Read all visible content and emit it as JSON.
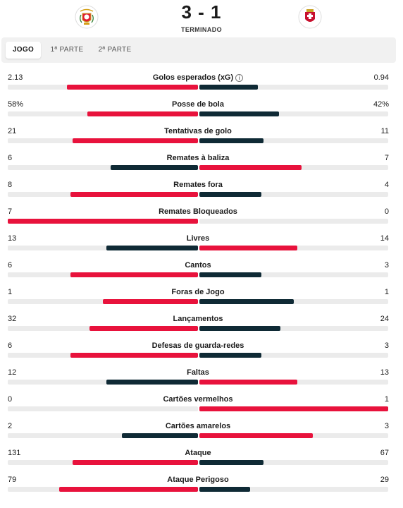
{
  "match": {
    "score": "3 - 1",
    "status": "TERMINADO",
    "home_crest": "benfica-crest-icon",
    "away_crest": "braga-crest-icon"
  },
  "tabs": [
    "JOGO",
    "1ª PARTE",
    "2ª PARTE"
  ],
  "active_tab": 0,
  "colors": {
    "red": "#e8123c",
    "dark": "#0f2a35",
    "track": "#ebebeb"
  },
  "stats": [
    {
      "name": "Golos esperados (xG)",
      "home": "2.13",
      "away": "0.94",
      "info": true,
      "leader": "home",
      "home_share": 0.69,
      "away_share": 0.31
    },
    {
      "name": "Posse de bola",
      "home": "58%",
      "away": "42%",
      "leader": "home",
      "home_share": 0.58,
      "away_share": 0.42
    },
    {
      "name": "Tentativas de golo",
      "home": "21",
      "away": "11",
      "leader": "home",
      "home_share": 0.66,
      "away_share": 0.34
    },
    {
      "name": "Remates à baliza",
      "home": "6",
      "away": "7",
      "leader": "away",
      "home_share": 0.46,
      "away_share": 0.54
    },
    {
      "name": "Remates fora",
      "home": "8",
      "away": "4",
      "leader": "home",
      "home_share": 0.67,
      "away_share": 0.33
    },
    {
      "name": "Remates Bloqueados",
      "home": "7",
      "away": "0",
      "leader": "home",
      "home_share": 1.0,
      "away_share": 0.0
    },
    {
      "name": "Livres",
      "home": "13",
      "away": "14",
      "leader": "away",
      "home_share": 0.48,
      "away_share": 0.52
    },
    {
      "name": "Cantos",
      "home": "6",
      "away": "3",
      "leader": "home",
      "home_share": 0.67,
      "away_share": 0.33
    },
    {
      "name": "Foras de Jogo",
      "home": "1",
      "away": "1",
      "leader": "none",
      "home_share": 0.5,
      "away_share": 0.5
    },
    {
      "name": "Lançamentos",
      "home": "32",
      "away": "24",
      "leader": "home",
      "home_share": 0.57,
      "away_share": 0.43
    },
    {
      "name": "Defesas de guarda-redes",
      "home": "6",
      "away": "3",
      "leader": "home",
      "home_share": 0.67,
      "away_share": 0.33
    },
    {
      "name": "Faltas",
      "home": "12",
      "away": "13",
      "leader": "away",
      "home_share": 0.48,
      "away_share": 0.52
    },
    {
      "name": "Cartões vermelhos",
      "home": "0",
      "away": "1",
      "leader": "away",
      "home_share": 0.0,
      "away_share": 1.0
    },
    {
      "name": "Cartões amarelos",
      "home": "2",
      "away": "3",
      "leader": "away",
      "home_share": 0.4,
      "away_share": 0.6
    },
    {
      "name": "Ataque",
      "home": "131",
      "away": "67",
      "leader": "home",
      "home_share": 0.66,
      "away_share": 0.34
    },
    {
      "name": "Ataque Perigoso",
      "home": "79",
      "away": "29",
      "leader": "home",
      "home_share": 0.73,
      "away_share": 0.27
    }
  ]
}
